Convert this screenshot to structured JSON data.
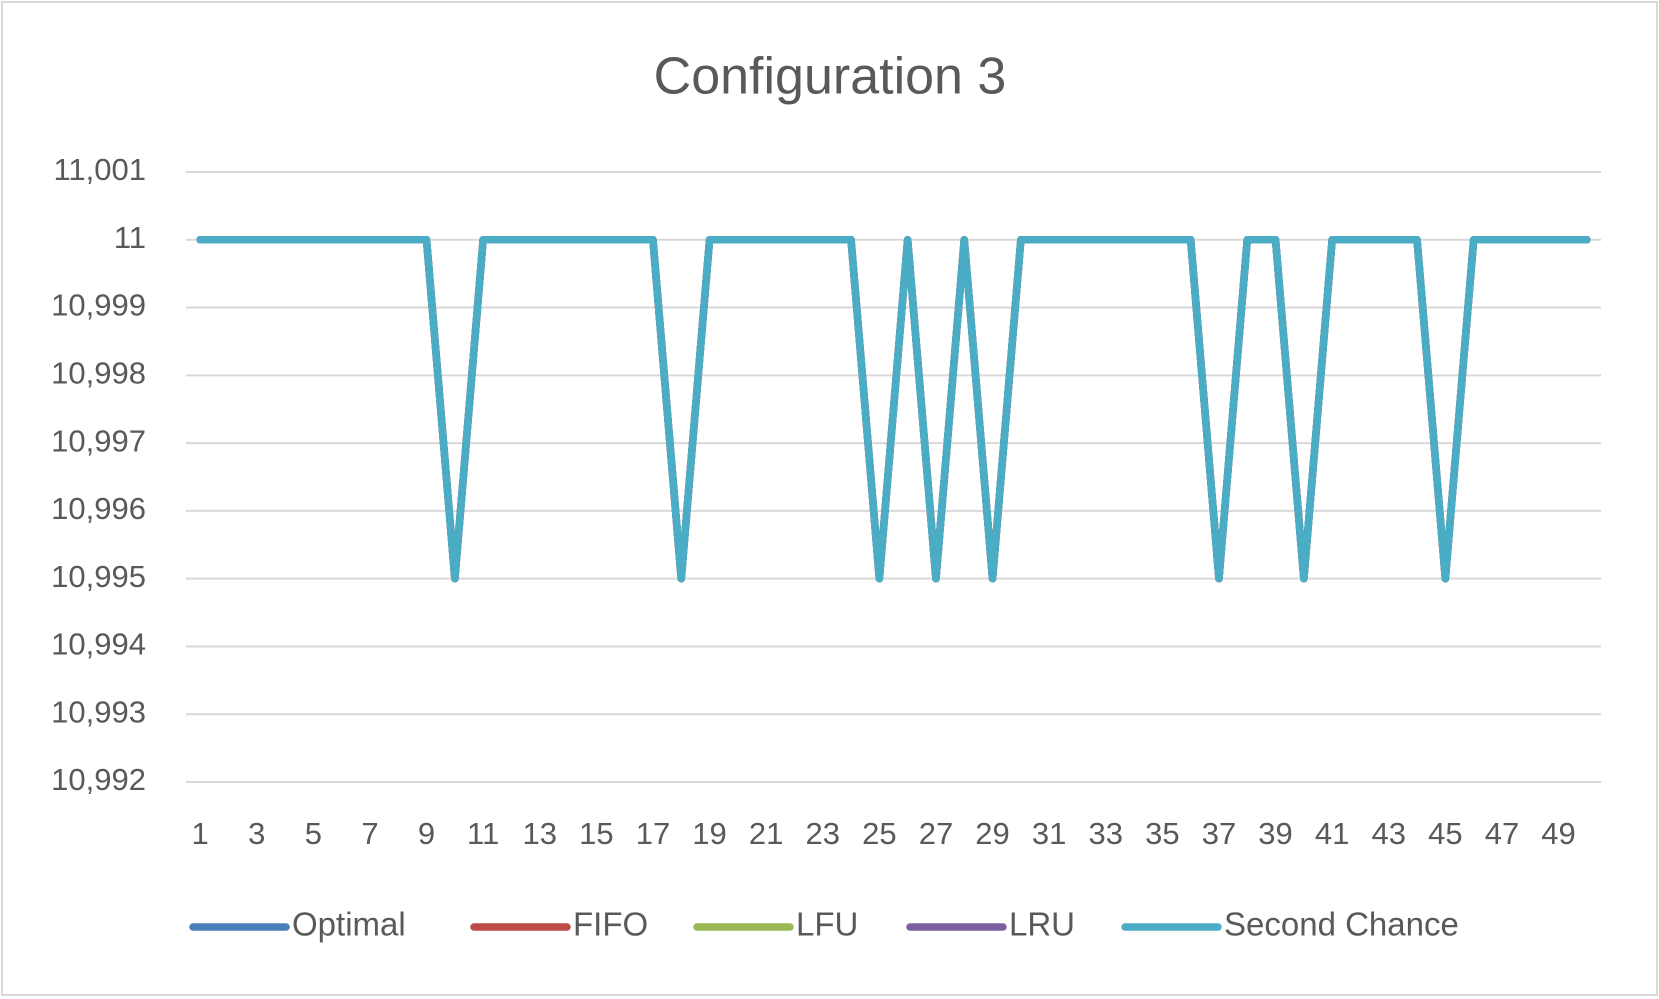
{
  "chart_data": {
    "type": "line",
    "title": "Configuration 3",
    "categories": [
      1,
      null,
      3,
      null,
      5,
      null,
      7,
      null,
      9,
      null,
      11,
      null,
      13,
      null,
      15,
      null,
      17,
      null,
      19,
      null,
      21,
      null,
      23,
      null,
      25,
      null,
      27,
      null,
      29,
      null,
      31,
      null,
      33,
      null,
      35,
      null,
      37,
      null,
      39,
      null,
      41,
      null,
      43,
      null,
      45,
      null,
      47,
      null,
      49,
      null
    ],
    "series": [
      {
        "name": "Optimal",
        "color": "#4a7ebb",
        "values": [
          11,
          11,
          11,
          11,
          11,
          11,
          11,
          11,
          11,
          10.995,
          11,
          11,
          11,
          11,
          11,
          11,
          11,
          10.995,
          11,
          11,
          11,
          11,
          11,
          11,
          10.995,
          11,
          10.995,
          11,
          10.995,
          11,
          11,
          11,
          11,
          11,
          11,
          11,
          10.995,
          11,
          11,
          10.995,
          11,
          11,
          11,
          11,
          10.995,
          11,
          11,
          11,
          11,
          11
        ]
      },
      {
        "name": "FIFO",
        "color": "#be4b48",
        "values": [
          11,
          11,
          11,
          11,
          11,
          11,
          11,
          11,
          11,
          10.995,
          11,
          11,
          11,
          11,
          11,
          11,
          11,
          10.995,
          11,
          11,
          11,
          11,
          11,
          11,
          10.995,
          11,
          10.995,
          11,
          10.995,
          11,
          11,
          11,
          11,
          11,
          11,
          11,
          10.995,
          11,
          11,
          10.995,
          11,
          11,
          11,
          11,
          10.995,
          11,
          11,
          11,
          11,
          11
        ]
      },
      {
        "name": "LFU",
        "color": "#98b954",
        "values": [
          11,
          11,
          11,
          11,
          11,
          11,
          11,
          11,
          11,
          10.995,
          11,
          11,
          11,
          11,
          11,
          11,
          11,
          10.995,
          11,
          11,
          11,
          11,
          11,
          11,
          10.995,
          11,
          10.995,
          11,
          10.995,
          11,
          11,
          11,
          11,
          11,
          11,
          11,
          10.995,
          11,
          11,
          10.995,
          11,
          11,
          11,
          11,
          10.995,
          11,
          11,
          11,
          11,
          11
        ]
      },
      {
        "name": "LRU",
        "color": "#7d60a0",
        "values": [
          11,
          11,
          11,
          11,
          11,
          11,
          11,
          11,
          11,
          10.995,
          11,
          11,
          11,
          11,
          11,
          11,
          11,
          10.995,
          11,
          11,
          11,
          11,
          11,
          11,
          10.995,
          11,
          10.995,
          11,
          10.995,
          11,
          11,
          11,
          11,
          11,
          11,
          11,
          10.995,
          11,
          11,
          10.995,
          11,
          11,
          11,
          11,
          10.995,
          11,
          11,
          11,
          11,
          11
        ]
      },
      {
        "name": "Second Chance",
        "color": "#4bacc6",
        "values": [
          11,
          11,
          11,
          11,
          11,
          11,
          11,
          11,
          11,
          10.995,
          11,
          11,
          11,
          11,
          11,
          11,
          11,
          10.995,
          11,
          11,
          11,
          11,
          11,
          11,
          10.995,
          11,
          10.995,
          11,
          10.995,
          11,
          11,
          11,
          11,
          11,
          11,
          11,
          10.995,
          11,
          11,
          10.995,
          11,
          11,
          11,
          11,
          10.995,
          11,
          11,
          11,
          11,
          11
        ]
      }
    ],
    "ylim": [
      10.992,
      11.001
    ],
    "yticks": [
      {
        "value": 10.992,
        "label": "10,992"
      },
      {
        "value": 10.993,
        "label": "10,993"
      },
      {
        "value": 10.994,
        "label": "10,994"
      },
      {
        "value": 10.995,
        "label": "10,995"
      },
      {
        "value": 10.996,
        "label": "10,996"
      },
      {
        "value": 10.997,
        "label": "10,997"
      },
      {
        "value": 10.998,
        "label": "10,998"
      },
      {
        "value": 10.999,
        "label": "10,999"
      },
      11,
      {
        "value": 11.001,
        "label": "11,001"
      }
    ],
    "grid": true,
    "legend": "bottom"
  }
}
